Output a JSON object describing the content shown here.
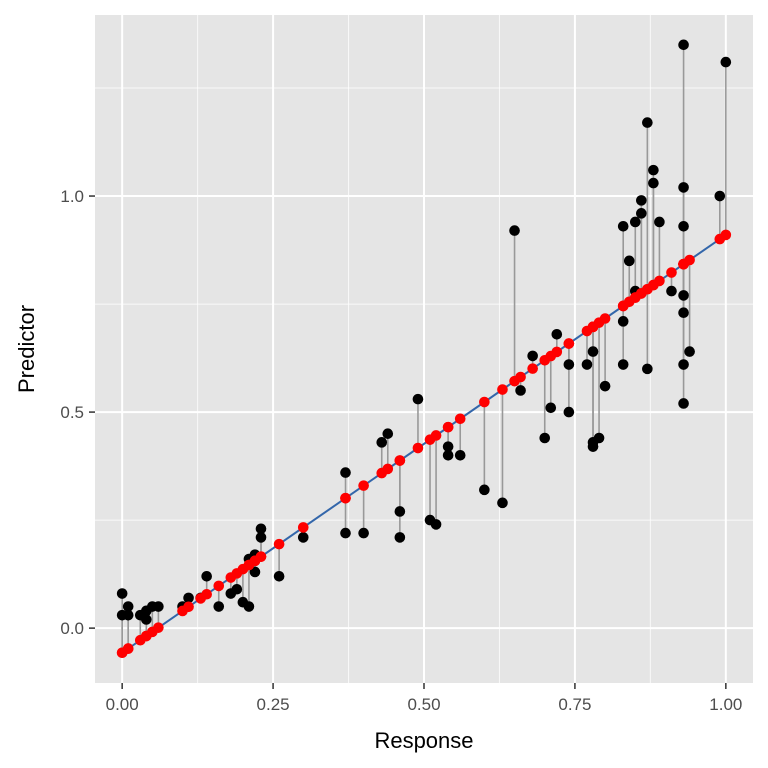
{
  "chart_data": {
    "type": "scatter",
    "title": "",
    "xlabel": "Response",
    "ylabel": "Predictor",
    "xlim": [
      -0.045,
      1.045
    ],
    "ylim": [
      -0.127,
      1.419
    ],
    "x_ticks": [
      0.0,
      0.25,
      0.5,
      0.75,
      1.0
    ],
    "x_tick_labels": [
      "0.00",
      "0.25",
      "0.50",
      "0.75",
      "1.00"
    ],
    "y_ticks": [
      0.0,
      0.5,
      1.0
    ],
    "y_tick_labels": [
      "0.0",
      "0.5",
      "1.0"
    ],
    "grid": true,
    "fit_line": {
      "intercept": -0.057,
      "slope": 0.967
    },
    "colors": {
      "panel": "#e5e5e5",
      "grid_major": "#ffffff",
      "observed": "#000000",
      "fitted": "#ff0000",
      "line": "#3366aa",
      "residual": "#999999"
    },
    "series": [
      {
        "kind": "observed",
        "points": [
          [
            0.0,
            0.08
          ],
          [
            0.0,
            0.03
          ],
          [
            0.01,
            0.05
          ],
          [
            0.01,
            0.03
          ],
          [
            0.03,
            0.03
          ],
          [
            0.04,
            0.04
          ],
          [
            0.04,
            0.02
          ],
          [
            0.05,
            0.05
          ],
          [
            0.06,
            0.05
          ],
          [
            0.1,
            0.05
          ],
          [
            0.11,
            0.07
          ],
          [
            0.13,
            0.07
          ],
          [
            0.14,
            0.12
          ],
          [
            0.16,
            0.05
          ],
          [
            0.18,
            0.08
          ],
          [
            0.19,
            0.09
          ],
          [
            0.2,
            0.06
          ],
          [
            0.21,
            0.05
          ],
          [
            0.21,
            0.16
          ],
          [
            0.22,
            0.13
          ],
          [
            0.22,
            0.17
          ],
          [
            0.23,
            0.23
          ],
          [
            0.23,
            0.21
          ],
          [
            0.26,
            0.12
          ],
          [
            0.3,
            0.21
          ],
          [
            0.37,
            0.36
          ],
          [
            0.37,
            0.22
          ],
          [
            0.4,
            0.22
          ],
          [
            0.43,
            0.43
          ],
          [
            0.44,
            0.45
          ],
          [
            0.46,
            0.27
          ],
          [
            0.46,
            0.21
          ],
          [
            0.49,
            0.53
          ],
          [
            0.51,
            0.25
          ],
          [
            0.52,
            0.24
          ],
          [
            0.54,
            0.42
          ],
          [
            0.54,
            0.4
          ],
          [
            0.56,
            0.4
          ],
          [
            0.6,
            0.32
          ],
          [
            0.63,
            0.29
          ],
          [
            0.65,
            0.92
          ],
          [
            0.66,
            0.55
          ],
          [
            0.68,
            0.63
          ],
          [
            0.7,
            0.44
          ],
          [
            0.71,
            0.51
          ],
          [
            0.72,
            0.68
          ],
          [
            0.74,
            0.61
          ],
          [
            0.74,
            0.5
          ],
          [
            0.77,
            0.61
          ],
          [
            0.78,
            0.64
          ],
          [
            0.78,
            0.43
          ],
          [
            0.78,
            0.42
          ],
          [
            0.79,
            0.44
          ],
          [
            0.8,
            0.56
          ],
          [
            0.83,
            0.93
          ],
          [
            0.83,
            0.71
          ],
          [
            0.83,
            0.61
          ],
          [
            0.84,
            0.85
          ],
          [
            0.85,
            0.94
          ],
          [
            0.85,
            0.78
          ],
          [
            0.86,
            0.99
          ],
          [
            0.86,
            0.96
          ],
          [
            0.87,
            1.17
          ],
          [
            0.87,
            0.6
          ],
          [
            0.88,
            1.06
          ],
          [
            0.88,
            1.03
          ],
          [
            0.89,
            0.94
          ],
          [
            0.91,
            0.78
          ],
          [
            0.93,
            1.35
          ],
          [
            0.93,
            1.02
          ],
          [
            0.93,
            0.93
          ],
          [
            0.93,
            0.77
          ],
          [
            0.93,
            0.73
          ],
          [
            0.93,
            0.61
          ],
          [
            0.93,
            0.52
          ],
          [
            0.94,
            0.64
          ],
          [
            0.99,
            1.0
          ],
          [
            1.0,
            1.31
          ]
        ]
      },
      {
        "kind": "fitted",
        "source": "fit_line"
      }
    ]
  }
}
